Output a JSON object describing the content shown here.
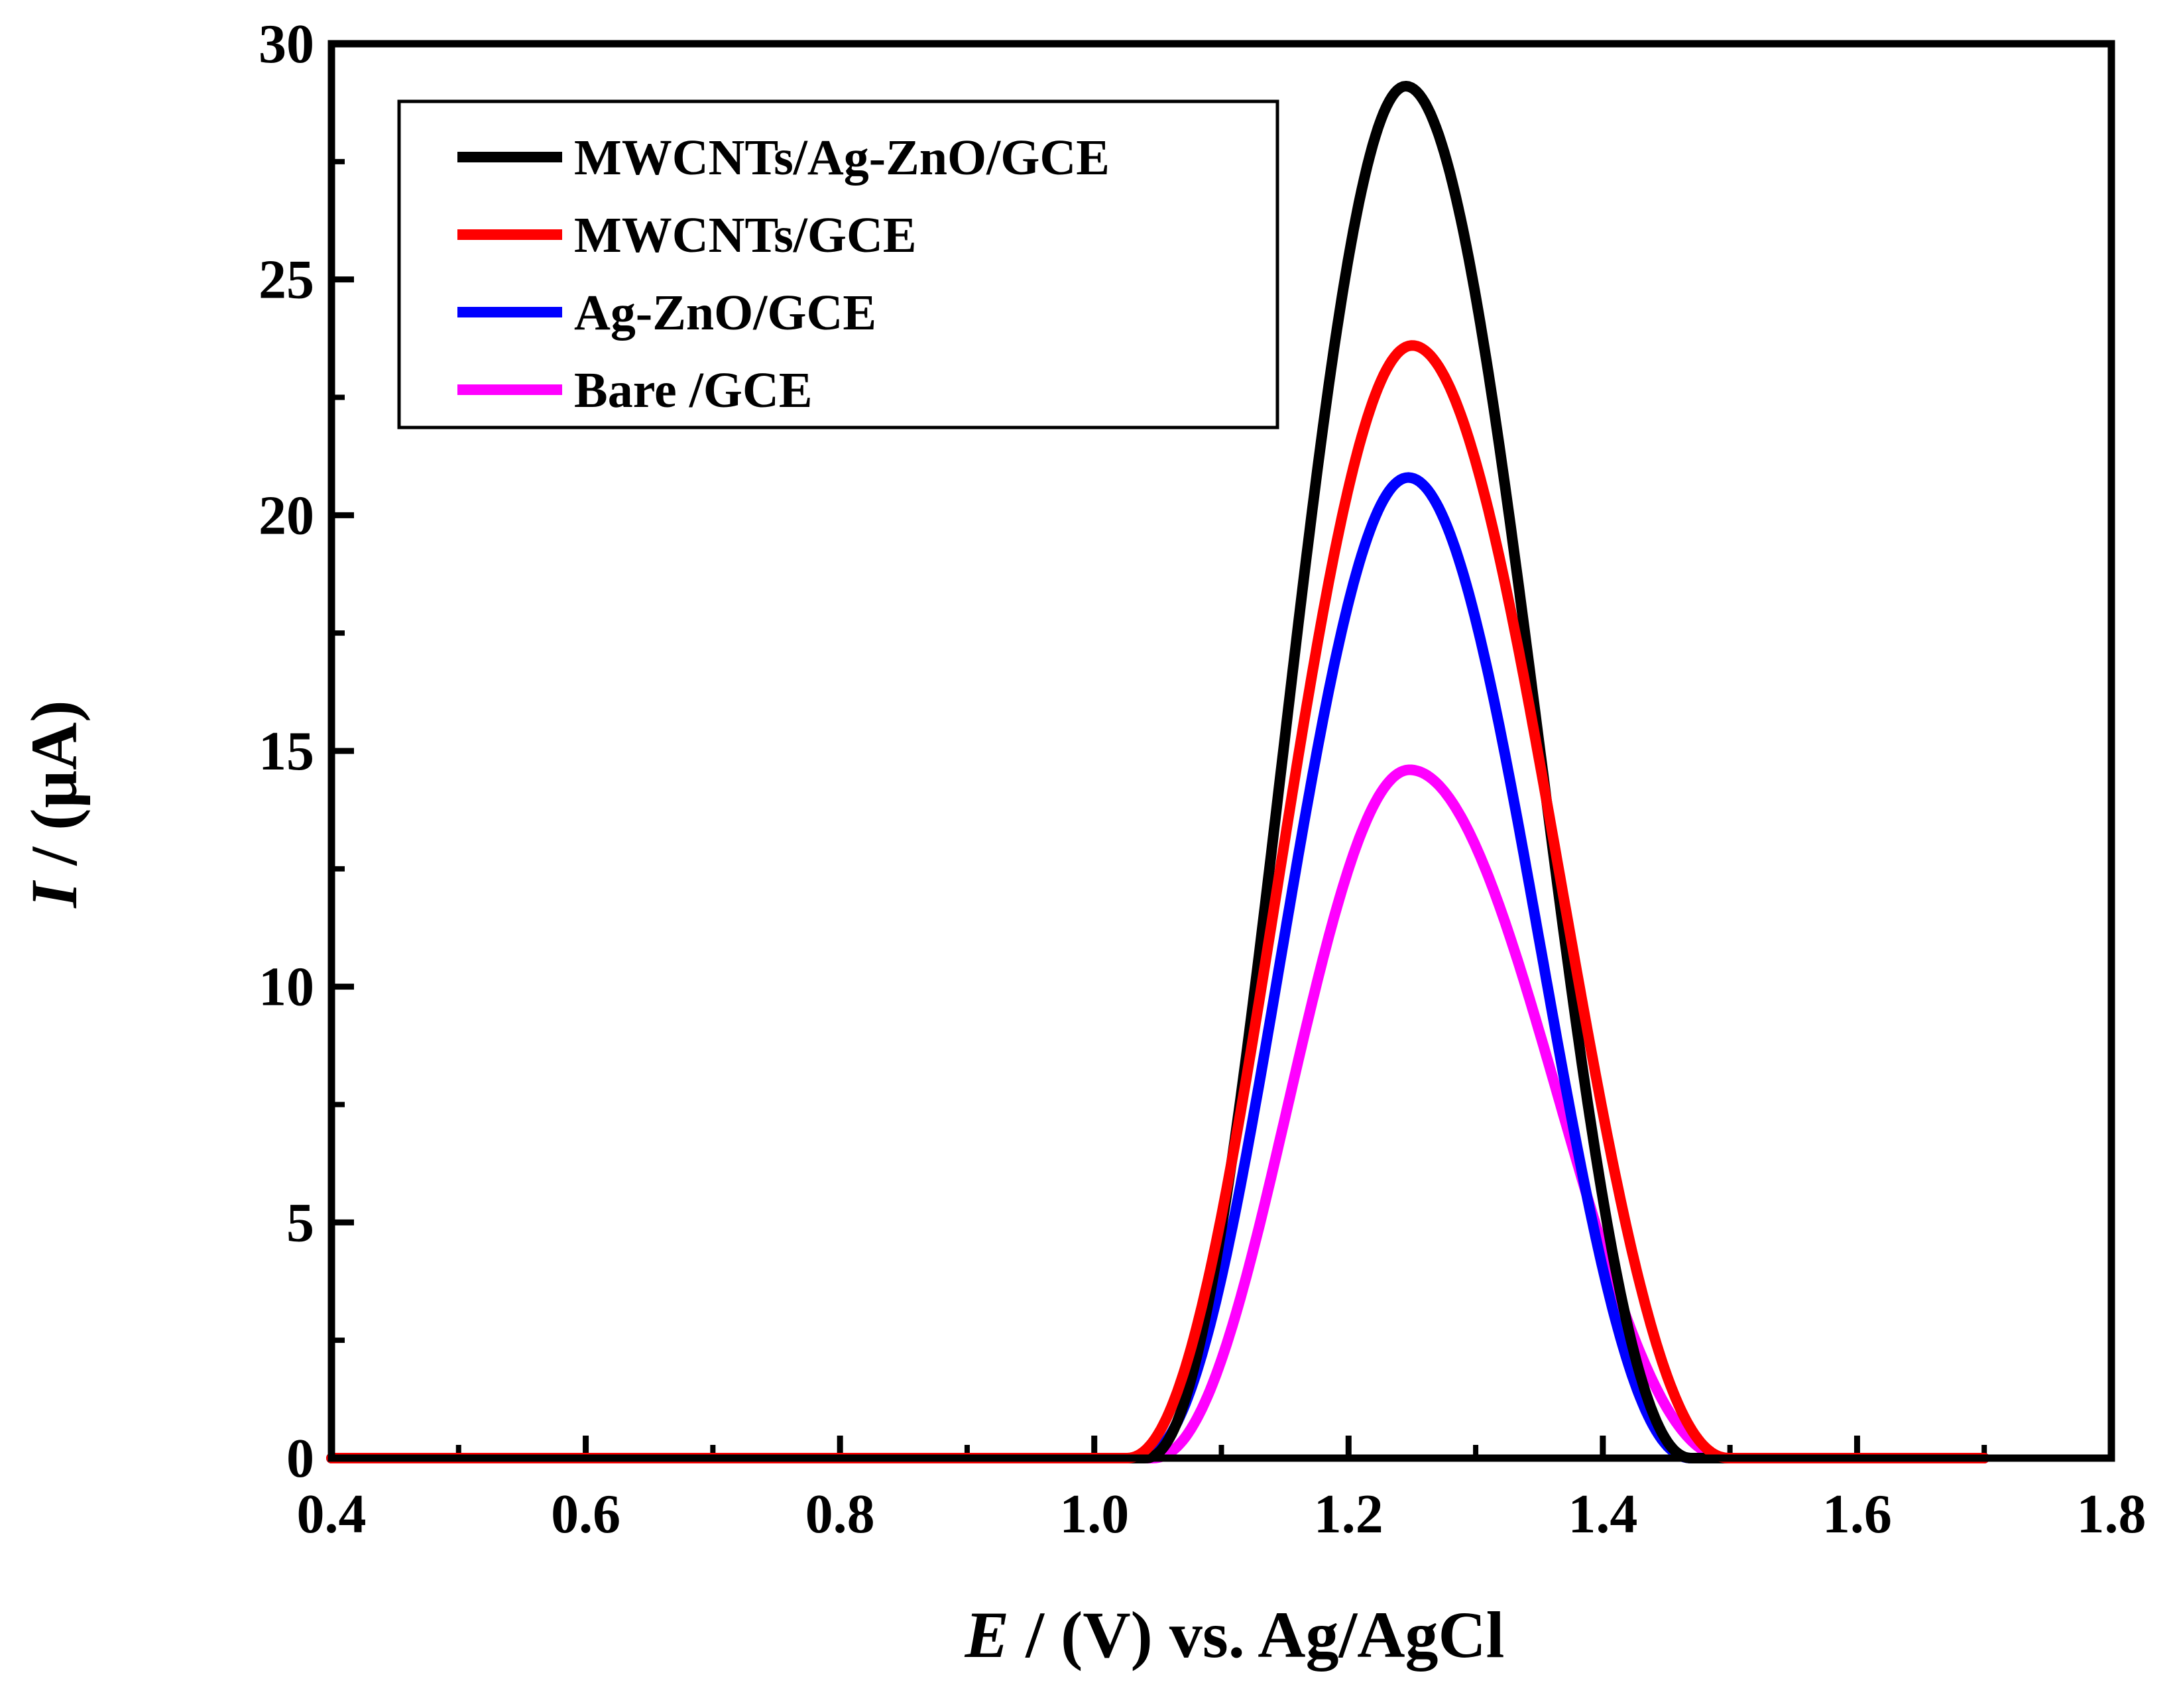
{
  "chart_data": {
    "type": "line",
    "title": "",
    "xlabel": {
      "italic": "E",
      "rest": " / (V) vs. Ag/AgCl"
    },
    "ylabel": {
      "italic": "I",
      "rest": " / (µA)"
    },
    "xlim": [
      0.4,
      1.8
    ],
    "ylim": [
      0,
      30
    ],
    "x_ticks": [
      "0.4",
      "0.6",
      "0.8",
      "1.0",
      "1.2",
      "1.4",
      "1.6",
      "1.8"
    ],
    "y_ticks": [
      "0",
      "5",
      "10",
      "15",
      "20",
      "25",
      "30"
    ],
    "x_tick_values": [
      0.4,
      0.6,
      0.8,
      1.0,
      1.2,
      1.4,
      1.6,
      1.8
    ],
    "y_tick_values": [
      0,
      5,
      10,
      15,
      20,
      25,
      30
    ],
    "x_minor_step": 0.1,
    "y_minor_step": 2.5,
    "grid": false,
    "legend_position": "top-left",
    "x_range": [
      0.4,
      1.7
    ],
    "series": [
      {
        "name": "MWCNTs/Ag-ZnO/GCE",
        "color": "#000000",
        "peak_x": 1.245,
        "peak_y": 29.1,
        "onset": 1.04,
        "end": 1.47
      },
      {
        "name": "MWCNTs/GCE",
        "color": "#ff0000",
        "peak_x": 1.25,
        "peak_y": 23.6,
        "onset": 1.025,
        "end": 1.5
      },
      {
        "name": "Ag-ZnO/GCE",
        "color": "#0000ff",
        "peak_x": 1.247,
        "peak_y": 20.8,
        "onset": 1.035,
        "end": 1.47
      },
      {
        "name": "Bare /GCE",
        "color": "#ff00ff",
        "peak_x": 1.248,
        "peak_y": 14.6,
        "onset": 1.045,
        "end": 1.5
      }
    ]
  }
}
